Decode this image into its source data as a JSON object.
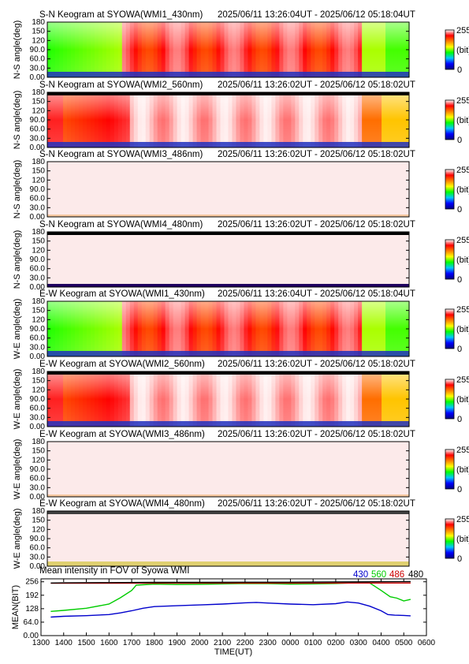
{
  "chart_data": {
    "type": "heatmap",
    "panels": [
      {
        "title": "S-N Keogram at SYOWA(WMI1_430nm)",
        "time_range": "2025/06/11 13:26:04UT - 2025/06/12 05:18:04UT",
        "ylabel": "N-S angle(deg)",
        "scheme": "full"
      },
      {
        "title": "S-N Keogram at SYOWA(WMI2_560nm)",
        "time_range": "2025/06/11 13:26:02UT - 2025/06/12 05:18:02UT",
        "ylabel": "N-S angle(deg)",
        "scheme": "bright"
      },
      {
        "title": "S-N Keogram at SYOWA(WMI3_486nm)",
        "time_range": "2025/06/11 13:26:02UT - 2025/06/12 05:18:02UT",
        "ylabel": "N-S angle(deg)",
        "scheme": "blank"
      },
      {
        "title": "S-N Keogram at SYOWA(WMI4_480nm)",
        "time_range": "2025/06/11 13:26:02UT - 2025/06/12 05:18:02UT",
        "ylabel": "N-S angle(deg)",
        "scheme": "blank2"
      },
      {
        "title": "E-W Keogram at SYOWA(WMI1_430nm)",
        "time_range": "2025/06/11 13:26:04UT - 2025/06/12 05:18:04UT",
        "ylabel": "W-E angle(deg)",
        "scheme": "full"
      },
      {
        "title": "E-W Keogram at SYOWA(WMI2_560nm)",
        "time_range": "2025/06/11 13:26:02UT - 2025/06/12 05:18:02UT",
        "ylabel": "W-E angle(deg)",
        "scheme": "bright"
      },
      {
        "title": "E-W Keogram at SYOWA(WMI3_486nm)",
        "time_range": "2025/06/11 13:26:02UT - 2025/06/12 05:18:02UT",
        "ylabel": "W-E angle(deg)",
        "scheme": "blank"
      },
      {
        "title": "E-W Keogram at SYOWA(WMI4_480nm)",
        "time_range": "2025/06/11 13:26:02UT - 2025/06/12 05:18:02UT",
        "ylabel": "W-E angle(deg)",
        "scheme": "blank3"
      }
    ],
    "panel_yticks": [
      "180",
      "150",
      "120",
      "90.0",
      "60.0",
      "30.0",
      "0.00"
    ],
    "colorbar": {
      "max_label": "255",
      "unit_label": "(bit)",
      "min_label": "0",
      "stops": [
        "#000080",
        "#0000ff",
        "#00c8ff",
        "#00ff00",
        "#ffff00",
        "#ff8000",
        "#ff0000",
        "#ffffff"
      ]
    },
    "mean_plot": {
      "type": "line",
      "title": "Mean intensity in FOV of Syowa WMI",
      "ylabel": "MEAN(BIT)",
      "xlabel": "TIME(UT)",
      "xlim": [
        13.0,
        30.0
      ],
      "ylim": [
        0,
        270
      ],
      "yticks": [
        "0.00",
        "64.0",
        "128",
        "192",
        "256"
      ],
      "xticks": [
        "1300",
        "1400",
        "1500",
        "1600",
        "1700",
        "1800",
        "1900",
        "2000",
        "2100",
        "2200",
        "2300",
        "0000",
        "0100",
        "0200",
        "0300",
        "0400",
        "0500",
        "0600"
      ],
      "series": [
        {
          "name": "430",
          "color": "#0000cc",
          "x": [
            13.43,
            14.0,
            15.0,
            16.0,
            16.5,
            17.0,
            17.5,
            18.0,
            19.0,
            20.0,
            21.0,
            22.0,
            22.5,
            23.0,
            24.0,
            25.0,
            26.0,
            26.5,
            27.0,
            27.5,
            28.0,
            28.3,
            28.6,
            29.0,
            29.3
          ],
          "y": [
            88,
            92,
            95,
            100,
            108,
            118,
            130,
            138,
            142,
            146,
            150,
            156,
            158,
            155,
            150,
            147,
            152,
            160,
            155,
            140,
            118,
            100,
            97,
            96,
            94
          ]
        },
        {
          "name": "560",
          "color": "#00cc00",
          "x": [
            13.43,
            14.0,
            15.0,
            16.0,
            16.5,
            17.0,
            17.2,
            17.5,
            18.0,
            19.0,
            20.0,
            21.0,
            22.0,
            23.0,
            24.0,
            25.0,
            26.0,
            27.0,
            27.5,
            28.0,
            28.4,
            28.7,
            29.0,
            29.3
          ],
          "y": [
            115,
            120,
            130,
            150,
            180,
            215,
            240,
            242,
            245,
            243,
            244,
            246,
            248,
            247,
            245,
            246,
            248,
            252,
            250,
            215,
            185,
            178,
            165,
            172
          ]
        },
        {
          "name": "486",
          "color": "#cc0000",
          "x": [
            13.43,
            29.3
          ],
          "y": [
            249,
            250
          ]
        },
        {
          "name": "480",
          "color": "#000000",
          "x": [
            13.43,
            14.0,
            16.0,
            18.0,
            20.0,
            22.0,
            24.0,
            26.0,
            28.0,
            29.3
          ],
          "y": [
            250,
            251,
            252,
            253,
            253,
            254,
            254,
            255,
            256,
            257
          ]
        }
      ]
    }
  }
}
